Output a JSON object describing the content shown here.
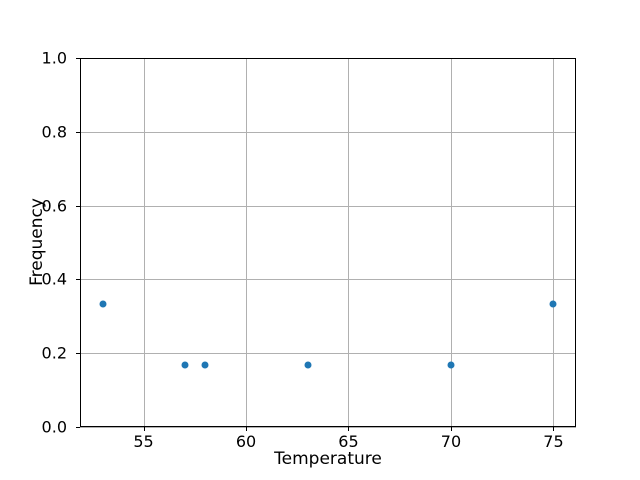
{
  "figure": {
    "background": "#ffffff"
  },
  "chart_data": {
    "type": "scatter",
    "xlabel": "Temperature",
    "ylabel": "Frequency",
    "x": [
      53,
      57,
      58,
      63,
      70,
      75
    ],
    "y": [
      0.333,
      0.167,
      0.167,
      0.167,
      0.167,
      0.333
    ],
    "xlim": [
      51.9,
      76.1
    ],
    "ylim": [
      0.0,
      1.0
    ],
    "xticks": [
      55,
      60,
      65,
      70,
      75
    ],
    "xtick_labels": [
      "55",
      "60",
      "65",
      "70",
      "75"
    ],
    "yticks": [
      0.0,
      0.2,
      0.4,
      0.6,
      0.8,
      1.0
    ],
    "ytick_labels": [
      "0.0",
      "0.2",
      "0.4",
      "0.6",
      "0.8",
      "1.0"
    ],
    "grid": true,
    "legend_position": "none",
    "marker_color": "#1f77b4",
    "grid_color": "#b0b0b0",
    "spine_color": "#000000"
  }
}
